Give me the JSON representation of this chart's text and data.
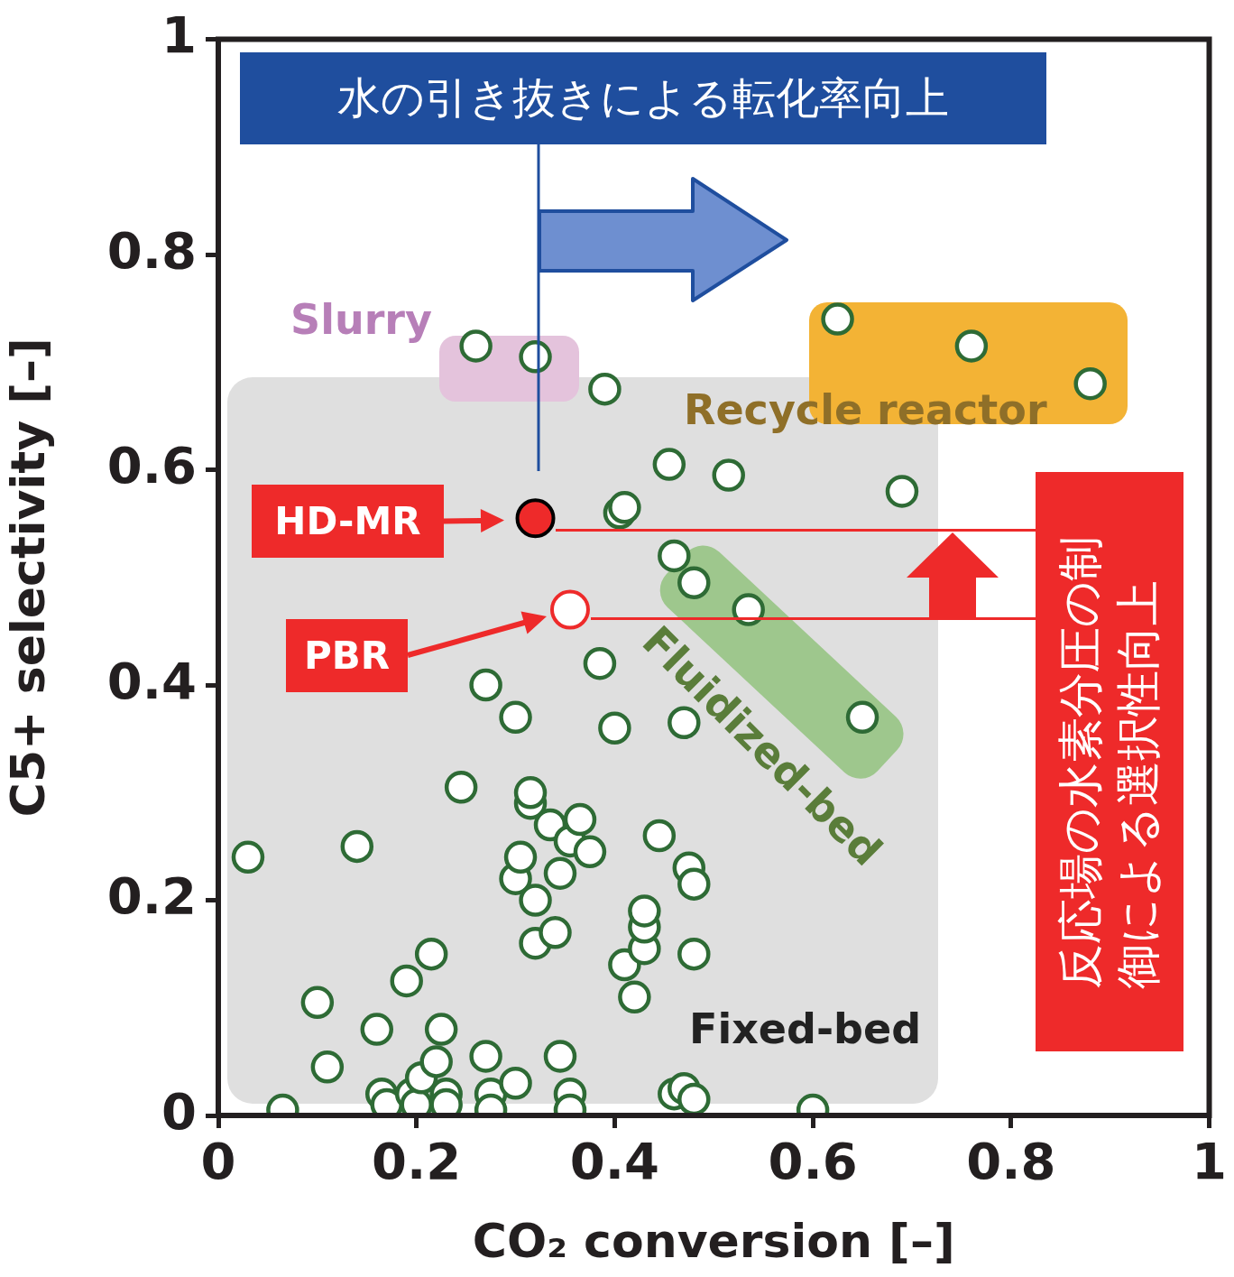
{
  "chart_data": {
    "type": "scatter",
    "xlabel": "CO₂ conversion [–]",
    "ylabel": "C5+ selectivity [–]",
    "xlim": [
      0,
      1
    ],
    "xticks": [
      0,
      0.2,
      0.4,
      0.6,
      0.8,
      1
    ],
    "ylim": [
      0,
      1
    ],
    "yticks": [
      0,
      0.2,
      0.4,
      0.6,
      0.8,
      1
    ],
    "grid": false,
    "marker": "circle",
    "annotations": [
      "水の引き抜きによる転化率向上",
      "反応場の水素分圧の制御による選択性向上",
      "Slurry",
      "Recycle reactor",
      "Fluidized-bed",
      "Fixed-bed",
      "HD-MR",
      "PBR"
    ],
    "series": [
      {
        "color": "#2e6b35",
        "x": [
          0.03,
          0.065,
          0.1,
          0.11,
          0.14,
          0.16,
          0.165,
          0.17,
          0.19,
          0.195,
          0.2,
          0.205,
          0.215,
          0.22,
          0.225,
          0.23,
          0.23,
          0.245,
          0.26,
          0.27,
          0.27,
          0.275,
          0.275,
          0.3,
          0.3,
          0.3,
          0.305,
          0.315,
          0.315,
          0.32,
          0.32,
          0.32,
          0.335,
          0.34,
          0.345,
          0.345,
          0.355,
          0.355,
          0.355,
          0.365,
          0.375,
          0.385,
          0.39,
          0.4,
          0.405,
          0.41,
          0.41,
          0.42,
          0.43,
          0.43,
          0.43,
          0.445,
          0.455,
          0.46,
          0.46,
          0.47,
          0.47,
          0.475,
          0.48,
          0.48,
          0.48,
          0.48,
          0.515,
          0.535,
          0.6,
          0.625,
          0.65,
          0.69,
          0.76,
          0.88
        ],
        "values": [
          0.24,
          0.005,
          0.105,
          0.045,
          0.25,
          0.08,
          0.02,
          0.01,
          0.125,
          0.02,
          0.01,
          0.035,
          0.15,
          0.05,
          0.08,
          0.02,
          0.01,
          0.305,
          0.715,
          0.4,
          0.055,
          0.02,
          0.005,
          0.03,
          0.37,
          0.22,
          0.24,
          0.29,
          0.3,
          0.2,
          0.705,
          0.16,
          0.27,
          0.17,
          0.225,
          0.055,
          0.02,
          0.005,
          0.255,
          0.275,
          0.245,
          0.42,
          0.675,
          0.36,
          0.56,
          0.565,
          0.14,
          0.11,
          0.155,
          0.175,
          0.19,
          0.26,
          0.605,
          0.52,
          0.02,
          0.025,
          0.365,
          0.23,
          0.215,
          0.15,
          0.015,
          0.495,
          0.595,
          0.47,
          0.005,
          0.74,
          0.37,
          0.58,
          0.715,
          0.68
        ]
      },
      {
        "color": "#ee2a2a",
        "x": [
          0.32
        ],
        "values": [
          0.555
        ]
      },
      {
        "color": "#ee2a2a",
        "x": [
          0.355
        ],
        "values": [
          0.47
        ]
      }
    ]
  }
}
